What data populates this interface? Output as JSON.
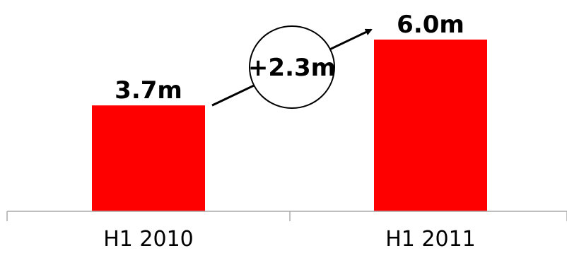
{
  "chart_data": {
    "type": "bar",
    "categories": [
      "H1 2010",
      "H1 2011"
    ],
    "values": [
      3.7,
      6.0
    ],
    "value_labels": [
      "3.7m",
      "6.0m"
    ],
    "title": "",
    "xlabel": "",
    "ylabel": "",
    "ylim": [
      0,
      6.0
    ],
    "grid": false,
    "legend": "none",
    "annotation": {
      "text": "+2.3m",
      "from_category": "H1 2010",
      "to_category": "H1 2011"
    },
    "colors": {
      "bar": "#ff0000",
      "axis": "#aaaaaa",
      "text": "#000000"
    }
  }
}
